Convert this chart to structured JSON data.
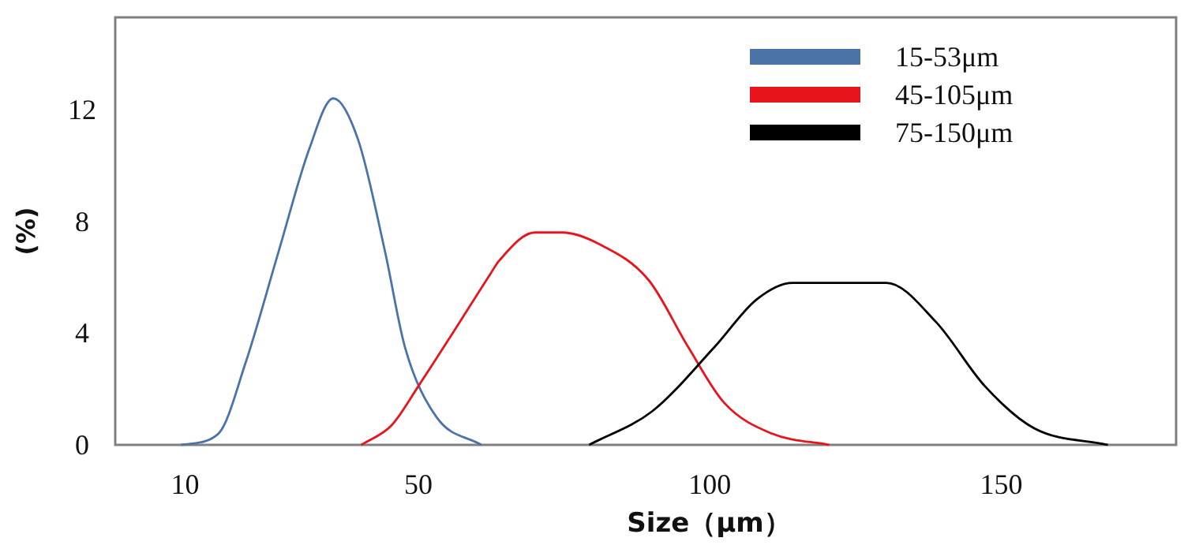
{
  "chart_data": {
    "type": "line",
    "xlabel": "Size（μm）",
    "ylabel": "(%)",
    "xlim": [
      -2,
      180
    ],
    "ylim": [
      0,
      15.3
    ],
    "xticks": [
      10,
      50,
      100,
      150
    ],
    "yticks": [
      0,
      4,
      8,
      12
    ],
    "grid": false,
    "legend": "top right",
    "marker": "none",
    "line_style": "solid",
    "series": [
      {
        "name": "15-53μm",
        "color": "#4a73a8",
        "x": [
          9.3,
          15.7,
          20.3,
          26,
          31.3,
          35.4,
          39.7,
          44.3,
          47.7,
          53.1,
          60.8
        ],
        "values": [
          0,
          0.4,
          2.9,
          6.9,
          10.6,
          12.4,
          10.9,
          6.9,
          3.5,
          1.0,
          0
        ]
      },
      {
        "name": "45-105μm",
        "color": "#e8141c",
        "x": [
          40.2,
          45.4,
          50,
          56.2,
          62.3,
          63.9,
          70,
          74.7,
          80.9,
          89.5,
          96.3,
          102.5,
          110.7,
          120.5
        ],
        "values": [
          0,
          0.7,
          2.1,
          4.1,
          6.1,
          6.6,
          7.6,
          7.6,
          7.2,
          5.9,
          3.5,
          1.5,
          0.4,
          0
        ]
      },
      {
        "name": "75-150μm",
        "color": "#000000",
        "x": [
          79.3,
          90.1,
          100.8,
          108,
          114.2,
          130.3,
          138.8,
          147.2,
          155.6,
          168.3
        ],
        "values": [
          0,
          1.2,
          3.5,
          5.2,
          5.8,
          5.8,
          4.4,
          2.1,
          0.6,
          0
        ]
      }
    ]
  }
}
